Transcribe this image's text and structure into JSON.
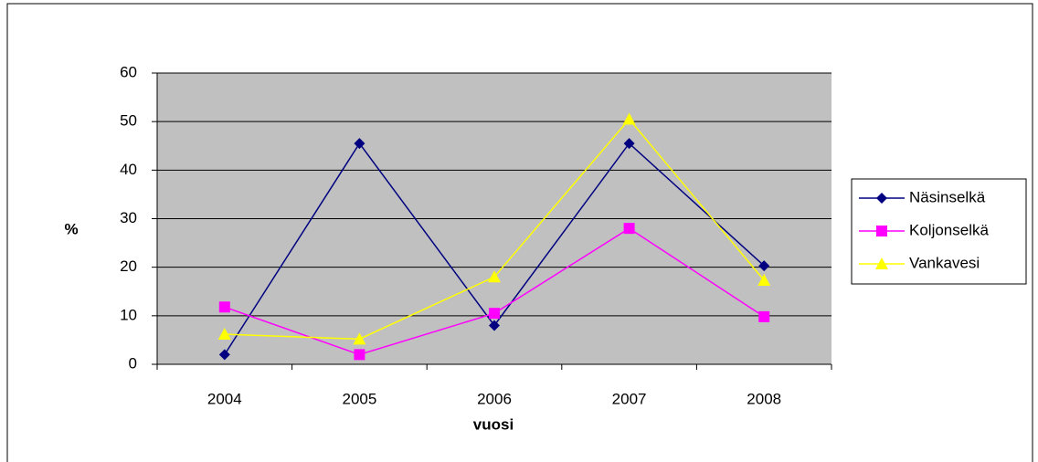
{
  "chart_data": {
    "type": "line",
    "categories": [
      "2004",
      "2005",
      "2006",
      "2007",
      "2008"
    ],
    "x_label": "vuosi",
    "y_label": "%",
    "ylim": [
      0,
      60
    ],
    "yticks": [
      0,
      10,
      20,
      30,
      40,
      50,
      60
    ],
    "grid": true,
    "plot_background": "#c0c0c0",
    "legend_position": "right",
    "series": [
      {
        "name": "Näsinselkä",
        "color": "#000080",
        "marker": "diamond",
        "values": [
          2,
          45.5,
          8,
          45.5,
          20.3
        ]
      },
      {
        "name": "Koljonselkä",
        "color": "#ff00ff",
        "marker": "square",
        "values": [
          11.8,
          2,
          10.5,
          28,
          9.8
        ]
      },
      {
        "name": "Vankavesi",
        "color": "#ffff00",
        "marker": "triangle",
        "values": [
          6.2,
          5.2,
          18,
          50.5,
          17.3
        ]
      }
    ]
  }
}
